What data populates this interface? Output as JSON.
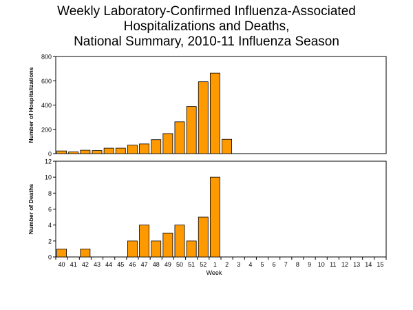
{
  "title_lines": [
    "Weekly Laboratory-Confirmed Influenza-Associated",
    "Hospitalizations and Deaths,",
    "National Summary, 2010-11 Influenza Season"
  ],
  "colors": {
    "bar_fill": "#FF9900",
    "bar_stroke": "#000000",
    "axis": "#000000"
  },
  "chart_data": [
    {
      "type": "bar",
      "ylabel": "Number of Hospitalizations",
      "ylim": [
        0,
        800
      ],
      "yticks": [
        0,
        200,
        400,
        600,
        800
      ],
      "grid": false,
      "categories": [
        "40",
        "41",
        "42",
        "43",
        "44",
        "45",
        "46",
        "47",
        "48",
        "49",
        "50",
        "51",
        "52",
        "1",
        "2",
        "3",
        "4",
        "5",
        "6",
        "7",
        "8",
        "9",
        "10",
        "11",
        "12",
        "13",
        "14",
        "15"
      ],
      "values": [
        22,
        15,
        28,
        25,
        45,
        45,
        70,
        80,
        115,
        165,
        262,
        388,
        592,
        663,
        118,
        null,
        null,
        null,
        null,
        null,
        null,
        null,
        null,
        null,
        null,
        null,
        null,
        null
      ]
    },
    {
      "type": "bar",
      "ylabel": "Number of Deaths",
      "xlabel": "Week",
      "ylim": [
        0,
        12
      ],
      "yticks": [
        0,
        2,
        4,
        6,
        8,
        10,
        12
      ],
      "grid": false,
      "categories": [
        "40",
        "41",
        "42",
        "43",
        "44",
        "45",
        "46",
        "47",
        "48",
        "49",
        "50",
        "51",
        "52",
        "1",
        "2",
        "3",
        "4",
        "5",
        "6",
        "7",
        "8",
        "9",
        "10",
        "11",
        "12",
        "13",
        "14",
        "15"
      ],
      "values": [
        1,
        0,
        1,
        0,
        0,
        0,
        2,
        4,
        2,
        3,
        4,
        2,
        5,
        10,
        0,
        null,
        null,
        null,
        null,
        null,
        null,
        null,
        null,
        null,
        null,
        null,
        null,
        null
      ]
    }
  ]
}
